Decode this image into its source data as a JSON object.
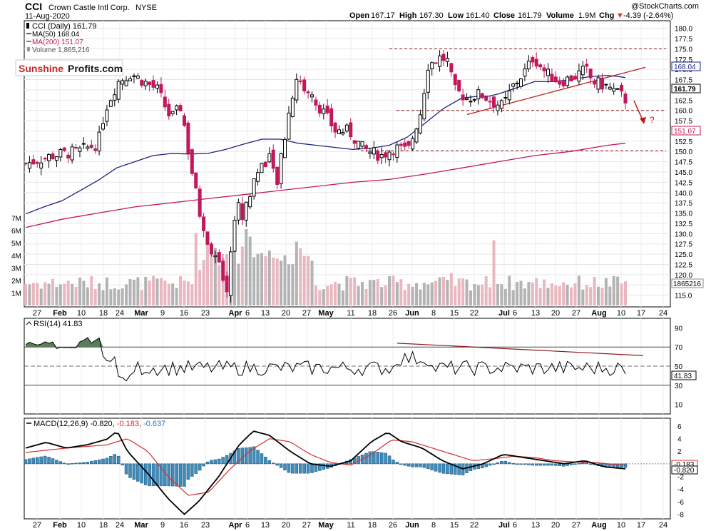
{
  "header": {
    "symbol": "CCI",
    "company": "Crown Castle Intl Corp.",
    "exchange": "NYSE",
    "date": "11-Aug-2020",
    "brand": "@StockCharts.com",
    "open_label": "Open",
    "open": "167.17",
    "high_label": "High",
    "high": "167.30",
    "low_label": "Low",
    "low": "161.40",
    "close_label": "Close",
    "close": "161.79",
    "volume_label": "Volume",
    "volume": "1.9M",
    "chg_label": "Chg",
    "chg": "-4.39 (-2.64%)",
    "chg_arrow": "▼"
  },
  "watermark": {
    "part1": "Sunshine",
    "part2": "Profits.com"
  },
  "legend": [
    {
      "text": "CCI (Daily) 161.79",
      "color": "#000000"
    },
    {
      "text": "MA(50) 168.04",
      "color": "#1a237e"
    },
    {
      "text": "MA(200) 151.07",
      "color": "#c2185b"
    },
    {
      "text": "Volume 1,865,216",
      "color": "#808080"
    }
  ],
  "panels": {
    "rsi_title": "RSI(14) 41.83",
    "macd_title": "MACD(12,26,9) -0.820, -0.183, -0.637",
    "macd_title_parts": [
      {
        "text": "MACD(12,26,9) -0.820,",
        "color": "#000000"
      },
      {
        "text": " -0.183,",
        "color": "#d32f2f"
      },
      {
        "text": " -0.637",
        "color": "#1976d2"
      }
    ]
  },
  "price_badges": {
    "ma50": "168.04",
    "close": "161.79",
    "ma200": "151.07",
    "volume": "1865216",
    "rsi": "41.83",
    "macd_signal": "-0.183",
    "macd": "-0.820"
  },
  "annotation": {
    "question": "?"
  },
  "axes": {
    "price_ticks": [
      "180.0",
      "177.5",
      "175.0",
      "172.5",
      "170.0",
      "167.5",
      "165.0",
      "162.5",
      "160.0",
      "157.5",
      "155.0",
      "152.5",
      "150.0",
      "147.5",
      "145.0",
      "142.5",
      "140.0",
      "137.5",
      "135.0",
      "132.5",
      "130.0",
      "127.5",
      "125.0",
      "122.5",
      "120.0",
      "117.5",
      "115.0"
    ],
    "volume_ticks": [
      "7M",
      "6M",
      "5M",
      "4M",
      "3M",
      "2M",
      "1M"
    ],
    "rsi_ticks": [
      "90",
      "70",
      "50",
      "30",
      "10"
    ],
    "macd_ticks": [
      "6",
      "4",
      "2",
      "0",
      "-2",
      "-4",
      "-6",
      "-8"
    ],
    "date_ticks": [
      "27",
      "Feb",
      "10",
      "18",
      "24",
      "Mar",
      "9",
      "16",
      "23",
      "Apr",
      "6",
      "13",
      "20",
      "27",
      "May",
      "11",
      "18",
      "26",
      "Jun",
      "8",
      "15",
      "22",
      "Jul",
      "6",
      "13",
      "20",
      "27",
      "Aug",
      "10",
      "17",
      "24"
    ]
  },
  "chart_data": {
    "type": "candlestick",
    "title": "CCI Crown Castle Intl Corp. NYSE",
    "price_range": [
      112.5,
      181.5
    ],
    "levels": {
      "resistance": 175.0,
      "support_1": 160.0,
      "support_2": 150.2
    },
    "ma50_points": [
      [
        0,
        134.8
      ],
      [
        10,
        136.5
      ],
      [
        20,
        138.0
      ],
      [
        30,
        140.5
      ],
      [
        40,
        143.0
      ],
      [
        50,
        146.0
      ],
      [
        60,
        147.5
      ],
      [
        70,
        149.0
      ],
      [
        80,
        149.5
      ],
      [
        90,
        149.4
      ],
      [
        100,
        149.5
      ],
      [
        110,
        150.5
      ],
      [
        120,
        151.8
      ],
      [
        130,
        153.0
      ],
      [
        140,
        153.0
      ],
      [
        150,
        152.0
      ],
      [
        160,
        151.5
      ],
      [
        170,
        151.0
      ],
      [
        180,
        150.5
      ],
      [
        190,
        150.8
      ],
      [
        200,
        151.5
      ],
      [
        210,
        153.5
      ],
      [
        220,
        157.0
      ],
      [
        230,
        160.5
      ],
      [
        240,
        163.0
      ],
      [
        250,
        163.5
      ],
      [
        255,
        163.5
      ],
      [
        260,
        164.0
      ],
      [
        270,
        165.5
      ],
      [
        280,
        167.0
      ],
      [
        290,
        167.0
      ],
      [
        300,
        167.5
      ],
      [
        310,
        168.2
      ],
      [
        320,
        168.5
      ],
      [
        325,
        168.3
      ],
      [
        330,
        168.0
      ]
    ],
    "ma200_points": [
      [
        0,
        131.5
      ],
      [
        20,
        133.5
      ],
      [
        40,
        135.0
      ],
      [
        60,
        136.5
      ],
      [
        80,
        137.5
      ],
      [
        100,
        138.5
      ],
      [
        120,
        139.5
      ],
      [
        140,
        140.5
      ],
      [
        160,
        141.5
      ],
      [
        180,
        142.5
      ],
      [
        200,
        143.2
      ],
      [
        220,
        144.5
      ],
      [
        240,
        146.0
      ],
      [
        260,
        147.5
      ],
      [
        280,
        149.0
      ],
      [
        300,
        150.0
      ],
      [
        320,
        151.5
      ],
      [
        330,
        152.0
      ]
    ],
    "rsi_range": [
      0,
      100
    ],
    "rsi_levels": [
      70,
      50,
      30
    ],
    "macd_range": [
      -8.5,
      7
    ],
    "candle_seed": 7
  }
}
